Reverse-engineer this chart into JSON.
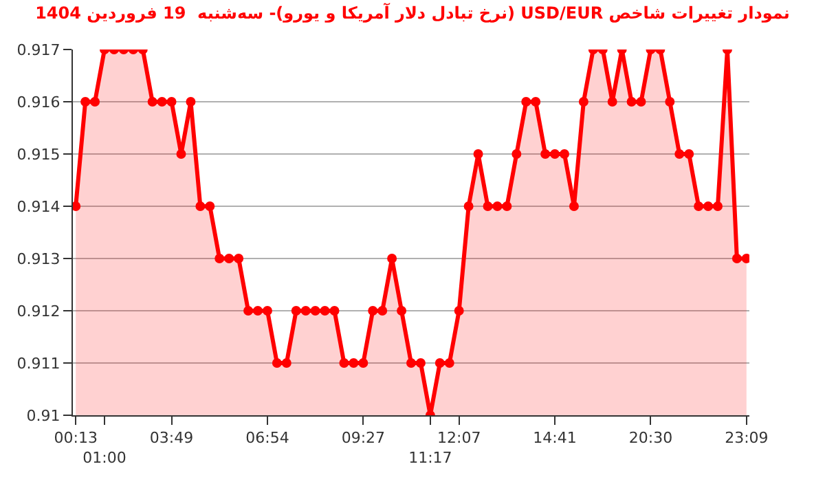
{
  "chart_data": {
    "type": "area",
    "title": "نمودار تغییرات شاخص USD/EUR (نرخ تبادل دلار آمریکا و یورو)- سه‌شنبه  19 فروردین 1404",
    "categories": [
      "00:13",
      null,
      null,
      "01:00",
      null,
      null,
      null,
      null,
      null,
      null,
      "03:49",
      null,
      null,
      null,
      null,
      null,
      null,
      null,
      null,
      null,
      "06:54",
      null,
      null,
      null,
      null,
      null,
      null,
      null,
      null,
      null,
      "09:27",
      null,
      null,
      null,
      null,
      null,
      null,
      "11:17",
      null,
      null,
      "12:07",
      null,
      null,
      null,
      null,
      null,
      null,
      null,
      null,
      null,
      "14:41",
      null,
      null,
      null,
      null,
      null,
      null,
      null,
      null,
      null,
      "20:30",
      null,
      null,
      null,
      null,
      null,
      null,
      null,
      null,
      null,
      "23:09"
    ],
    "series": [
      {
        "color": "#ff0000",
        "values": [
          0.914,
          0.916,
          0.916,
          0.917,
          0.917,
          0.917,
          0.917,
          0.917,
          0.916,
          0.916,
          0.916,
          0.915,
          0.916,
          0.914,
          0.914,
          0.913,
          0.913,
          0.913,
          0.912,
          0.912,
          0.912,
          0.911,
          0.911,
          0.912,
          0.912,
          0.912,
          0.912,
          0.912,
          0.911,
          0.911,
          0.911,
          0.912,
          0.912,
          0.913,
          0.912,
          0.911,
          0.911,
          0.91,
          0.911,
          0.911,
          0.912,
          0.914,
          0.915,
          0.914,
          0.914,
          0.914,
          0.915,
          0.916,
          0.916,
          0.915,
          0.915,
          0.915,
          0.914,
          0.916,
          0.917,
          0.917,
          0.916,
          0.917,
          0.916,
          0.916,
          0.917,
          0.917,
          0.916,
          0.915,
          0.915,
          0.914,
          0.914,
          0.914,
          0.917,
          0.913,
          0.913
        ]
      }
    ],
    "ylim": [
      0.91,
      0.917
    ],
    "yticks": [
      0.91,
      0.911,
      0.912,
      0.913,
      0.914,
      0.915,
      0.916,
      0.917
    ],
    "grid": "y",
    "marker": "circle",
    "line_style": "solid"
  }
}
